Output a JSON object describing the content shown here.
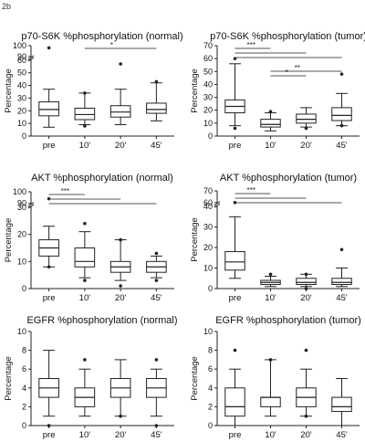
{
  "figure_label": "2b",
  "chart_data": [
    {
      "type": "box",
      "title": "p70-S6K %phosphorylation (normal)",
      "ylabel": "Percentage",
      "ylim": [
        0,
        100
      ],
      "yaxis_break": [
        60,
        90
      ],
      "yticks": [
        "0",
        "10",
        "20",
        "30",
        "40",
        "50",
        "60",
        "90",
        "100"
      ],
      "categories": [
        "pre",
        "10'",
        "20'",
        "45'"
      ],
      "boxes": [
        {
          "whisker_low": 7,
          "q1": 16,
          "median": 21,
          "q3": 27,
          "whisker_high": 37,
          "outliers": [
            98
          ]
        },
        {
          "whisker_low": 9,
          "q1": 13,
          "median": 17,
          "q3": 22,
          "whisker_high": 34,
          "outliers": [
            8,
            34
          ]
        },
        {
          "whisker_low": 9,
          "q1": 15,
          "median": 19,
          "q3": 24,
          "whisker_high": 37,
          "outliers": [
            57
          ]
        },
        {
          "whisker_low": 12,
          "q1": 18,
          "median": 21,
          "q3": 26,
          "whisker_high": 42,
          "outliers": [
            43
          ]
        }
      ],
      "significance": [
        {
          "from": 1,
          "to": 3,
          "label": "*"
        }
      ]
    },
    {
      "type": "box",
      "title": "p70-S6K %phosphorylation (tumor)",
      "ylabel": "Percentage",
      "ylim": [
        0,
        70
      ],
      "yticks": [
        "0",
        "10",
        "20",
        "30",
        "40",
        "50",
        "60",
        "70"
      ],
      "categories": [
        "pre",
        "10'",
        "20'",
        "45'"
      ],
      "boxes": [
        {
          "whisker_low": 8,
          "q1": 18,
          "median": 23,
          "q3": 28,
          "whisker_high": 56,
          "outliers": [
            6,
            60
          ]
        },
        {
          "whisker_low": 4,
          "q1": 7,
          "median": 9,
          "q3": 13,
          "whisker_high": 18,
          "outliers": [
            19
          ]
        },
        {
          "whisker_low": 7,
          "q1": 10,
          "median": 13,
          "q3": 17,
          "whisker_high": 22,
          "outliers": [
            6
          ]
        },
        {
          "whisker_low": 8,
          "q1": 12,
          "median": 16,
          "q3": 22,
          "whisker_high": 33,
          "outliers": [
            48,
            8
          ]
        }
      ],
      "significance": [
        {
          "from": 0,
          "to": 1,
          "label": "***"
        },
        {
          "from": 0,
          "to": 2,
          "label": ""
        },
        {
          "from": 0,
          "to": 3,
          "label": ""
        },
        {
          "from": 1,
          "to": 3,
          "label": "**"
        },
        {
          "from": 1,
          "to": 2,
          "label": "*"
        }
      ]
    },
    {
      "type": "box",
      "title": "AKT %phosphorylation (normal)",
      "ylabel": "Percentage",
      "ylim": [
        0,
        100
      ],
      "yaxis_break": [
        30,
        90
      ],
      "yticks": [
        "0",
        "10",
        "20",
        "30",
        "90",
        "100"
      ],
      "categories": [
        "pre",
        "10'",
        "20'",
        "45'"
      ],
      "boxes": [
        {
          "whisker_low": 8,
          "q1": 12,
          "median": 15,
          "q3": 18,
          "whisker_high": 23,
          "outliers": [
            94,
            8
          ]
        },
        {
          "whisker_low": 4,
          "q1": 8,
          "median": 10,
          "q3": 15,
          "whisker_high": 21,
          "outliers": [
            24,
            3
          ]
        },
        {
          "whisker_low": 3,
          "q1": 6,
          "median": 8,
          "q3": 10,
          "whisker_high": 18,
          "outliers": [
            18,
            1
          ]
        },
        {
          "whisker_low": 4,
          "q1": 6,
          "median": 8,
          "q3": 10,
          "whisker_high": 12,
          "outliers": [
            13,
            3
          ]
        }
      ],
      "significance": [
        {
          "from": 0,
          "to": 1,
          "label": "***"
        },
        {
          "from": 0,
          "to": 2,
          "label": ""
        },
        {
          "from": 0,
          "to": 3,
          "label": ""
        }
      ]
    },
    {
      "type": "box",
      "title": "AKT %phosphorylation (tumor)",
      "ylabel": "Percentage",
      "ylim": [
        0,
        70
      ],
      "yaxis_break": [
        40,
        60
      ],
      "yticks": [
        "0",
        "10",
        "20",
        "30",
        "40",
        "60",
        "70"
      ],
      "categories": [
        "pre",
        "10'",
        "20'",
        "45'"
      ],
      "boxes": [
        {
          "whisker_low": 5,
          "q1": 9,
          "median": 13,
          "q3": 18,
          "whisker_high": 35,
          "outliers": [
            60
          ]
        },
        {
          "whisker_low": 1,
          "q1": 2,
          "median": 3,
          "q3": 4,
          "whisker_high": 6,
          "outliers": [
            7
          ]
        },
        {
          "whisker_low": 1,
          "q1": 2,
          "median": 3,
          "q3": 5,
          "whisker_high": 7,
          "outliers": [
            7,
            0
          ]
        },
        {
          "whisker_low": 1,
          "q1": 2,
          "median": 3,
          "q3": 5,
          "whisker_high": 10,
          "outliers": [
            19
          ]
        }
      ],
      "significance": [
        {
          "from": 0,
          "to": 1,
          "label": "***"
        },
        {
          "from": 0,
          "to": 2,
          "label": ""
        },
        {
          "from": 0,
          "to": 3,
          "label": ""
        }
      ]
    },
    {
      "type": "box",
      "title": "EGFR %phosphorylation (normal)",
      "ylabel": "Percentage",
      "ylim": [
        0,
        10
      ],
      "yticks": [
        "0",
        "2",
        "4",
        "6",
        "8",
        "10"
      ],
      "categories": [
        "pre",
        "10'",
        "20'",
        "45'"
      ],
      "boxes": [
        {
          "whisker_low": 1,
          "q1": 3,
          "median": 4,
          "q3": 5,
          "whisker_high": 8,
          "outliers": [
            0
          ]
        },
        {
          "whisker_low": 1,
          "q1": 2,
          "median": 3,
          "q3": 4,
          "whisker_high": 6,
          "outliers": [
            7
          ]
        },
        {
          "whisker_low": 1,
          "q1": 3,
          "median": 4,
          "q3": 5,
          "whisker_high": 7,
          "outliers": [
            1
          ]
        },
        {
          "whisker_low": 1,
          "q1": 3,
          "median": 4,
          "q3": 5,
          "whisker_high": 6,
          "outliers": [
            7,
            0
          ]
        }
      ],
      "significance": []
    },
    {
      "type": "box",
      "title": "EGFR %phosphorylation (tumor)",
      "ylabel": "Percentage",
      "ylim": [
        0,
        10
      ],
      "yticks": [
        "0",
        "2",
        "4",
        "6",
        "8",
        "10"
      ],
      "categories": [
        "pre",
        "10'",
        "20'",
        "45'"
      ],
      "boxes": [
        {
          "whisker_low": 0,
          "q1": 1,
          "median": 2,
          "q3": 4,
          "whisker_high": 6,
          "outliers": [
            8
          ]
        },
        {
          "whisker_low": 1,
          "q1": 2,
          "median": 3,
          "q3": 3,
          "whisker_high": 7,
          "outliers": [
            7
          ]
        },
        {
          "whisker_low": 1,
          "q1": 2,
          "median": 3,
          "q3": 4,
          "whisker_high": 6,
          "outliers": [
            8,
            1
          ]
        },
        {
          "whisker_low": 0,
          "q1": 1.5,
          "median": 2,
          "q3": 3,
          "whisker_high": 5,
          "outliers": []
        }
      ],
      "significance": []
    }
  ]
}
